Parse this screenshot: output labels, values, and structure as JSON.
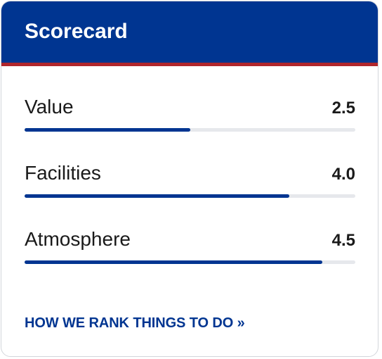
{
  "scorecard": {
    "title": "Scorecard",
    "max_score": 5,
    "colors": {
      "header_bg": "#003591",
      "accent_stripe": "#b0262c",
      "bar_fill": "#003591",
      "bar_track": "#e6e8ec"
    },
    "items": [
      {
        "label": "Value",
        "score": "2.5",
        "score_fraction": 0.5
      },
      {
        "label": "Facilities",
        "score": "4.0",
        "score_fraction": 0.8
      },
      {
        "label": "Atmosphere",
        "score": "4.5",
        "score_fraction": 0.9
      }
    ],
    "link_label": "HOW WE RANK THINGS TO DO »"
  }
}
